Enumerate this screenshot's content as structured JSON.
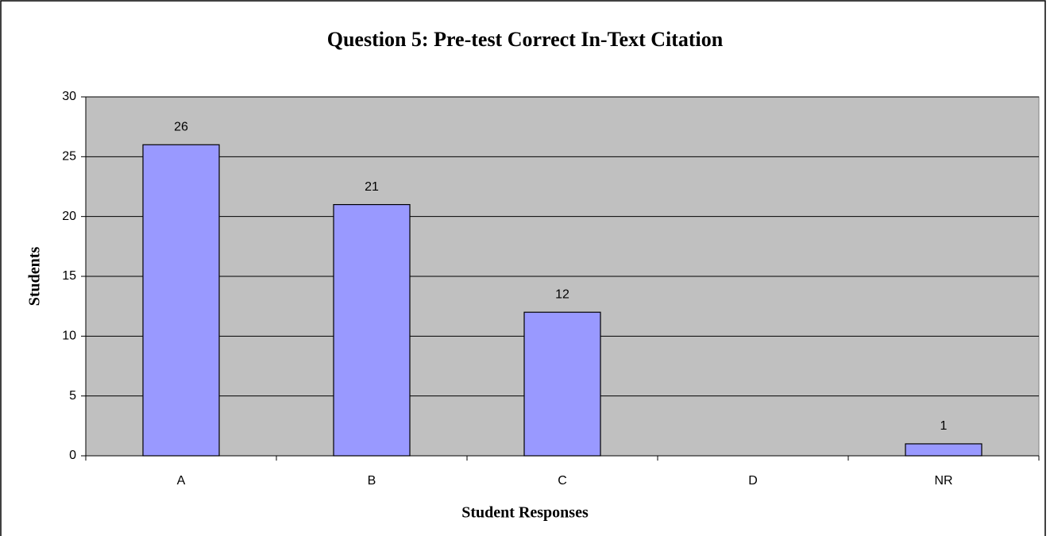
{
  "chart_data": {
    "type": "bar",
    "title": "Question 5: Pre-test Correct In-Text Citation",
    "x_label": "Student Responses",
    "y_label": "Students",
    "categories": [
      "A",
      "B",
      "C",
      "D",
      "NR"
    ],
    "values": [
      26,
      21,
      12,
      null,
      1
    ],
    "color": "#9999ff",
    "ylim": [
      0,
      30
    ],
    "yticks": [
      0,
      5,
      10,
      15,
      20,
      25,
      30
    ],
    "grid": true
  }
}
